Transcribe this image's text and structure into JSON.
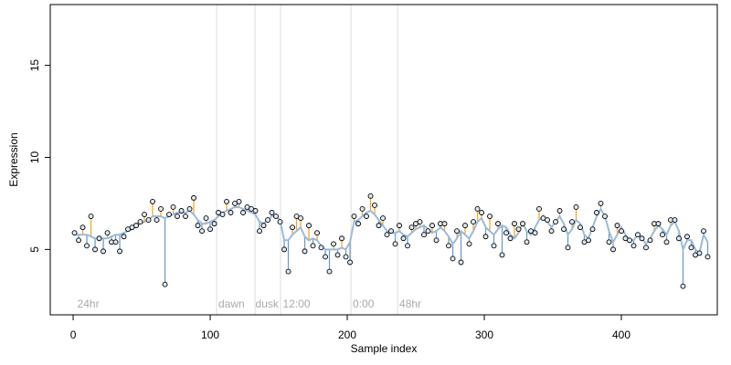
{
  "chart_data": {
    "type": "scatter",
    "xlabel": "Sample index",
    "ylabel": "Expression",
    "xlim": [
      -16.7,
      470
    ],
    "ylim": [
      1.45,
      18.3
    ],
    "xticks": [
      0,
      100,
      200,
      300,
      400
    ],
    "yticks": [
      5,
      10,
      15
    ],
    "point_color": "#dce8f2",
    "fit_color": "#9cbad8",
    "above_color": "#f5a623",
    "below_color": "#6f9cc4",
    "vline_color": "#dddddd",
    "vlines": [
      104.7,
      132.7,
      151.3,
      202.7,
      236.7
    ],
    "annotations": [
      {
        "text": "24hr",
        "x": 3,
        "y": 2.0
      },
      {
        "text": "dawn",
        "x": 106,
        "y": 2.0
      },
      {
        "text": "dusk",
        "x": 133,
        "y": 2.0
      },
      {
        "text": "12:00",
        "x": 153,
        "y": 2.0
      },
      {
        "text": "0:00",
        "x": 204,
        "y": 2.0
      },
      {
        "text": "48hr",
        "x": 238,
        "y": 2.0
      }
    ],
    "x": [
      1,
      4,
      7,
      10,
      13,
      16,
      19,
      22,
      25,
      28,
      31,
      34,
      37,
      40,
      43,
      46,
      49,
      52,
      55,
      58,
      61,
      64,
      67,
      70,
      73,
      76,
      79,
      82,
      85,
      88,
      91,
      94,
      97,
      100,
      103,
      106,
      109,
      112,
      115,
      118,
      121,
      124,
      127,
      130,
      133,
      136,
      139,
      142,
      145,
      148,
      151,
      154,
      157,
      160,
      163,
      166,
      169,
      172,
      175,
      178,
      181,
      184,
      187,
      190,
      193,
      196,
      199,
      202,
      205,
      208,
      211,
      214,
      217,
      220,
      223,
      226,
      229,
      232,
      235,
      238,
      241,
      244,
      247,
      250,
      253,
      256,
      259,
      262,
      265,
      268,
      271,
      274,
      277,
      280,
      283,
      286,
      289,
      292,
      295,
      298,
      301,
      304,
      307,
      310,
      313,
      316,
      319,
      322,
      325,
      328,
      331,
      334,
      337,
      340,
      343,
      346,
      349,
      352,
      355,
      358,
      361,
      364,
      367,
      370,
      373,
      376,
      379,
      382,
      385,
      388,
      391,
      394,
      397,
      400,
      403,
      406,
      409,
      412,
      415,
      418,
      421,
      424,
      427,
      430,
      433,
      436,
      439,
      442,
      445,
      448,
      451,
      454,
      457,
      460,
      463
    ],
    "values": [
      5.9,
      5.5,
      6.2,
      5.2,
      6.8,
      5.0,
      5.6,
      4.9,
      5.9,
      5.4,
      5.4,
      4.9,
      5.7,
      6.1,
      6.2,
      6.3,
      6.5,
      6.9,
      6.6,
      7.6,
      6.6,
      7.2,
      3.1,
      6.9,
      7.3,
      6.8,
      7.1,
      6.8,
      7.2,
      7.8,
      6.3,
      6.0,
      6.7,
      6.1,
      6.4,
      7.0,
      6.9,
      7.6,
      7.0,
      7.5,
      7.6,
      7.0,
      7.3,
      7.2,
      7.1,
      6.0,
      6.3,
      6.6,
      7.0,
      6.8,
      6.5,
      5.0,
      3.8,
      6.2,
      6.8,
      6.7,
      4.9,
      6.3,
      5.2,
      5.9,
      5.1,
      4.6,
      3.8,
      5.3,
      4.7,
      5.6,
      4.6,
      4.3,
      6.8,
      6.4,
      7.2,
      6.8,
      7.9,
      7.4,
      6.3,
      6.7,
      5.8,
      6.0,
      5.3,
      6.3,
      5.6,
      5.2,
      6.2,
      6.4,
      6.5,
      5.8,
      6.0,
      6.3,
      5.5,
      6.4,
      6.4,
      5.2,
      4.5,
      6.0,
      4.3,
      6.3,
      5.3,
      6.5,
      7.2,
      7.0,
      5.7,
      6.8,
      5.2,
      6.4,
      4.7,
      5.9,
      5.6,
      6.4,
      6.1,
      6.4,
      5.4,
      6.0,
      5.9,
      7.2,
      6.7,
      6.6,
      6.0,
      6.5,
      7.1,
      6.1,
      5.1,
      6.5,
      7.3,
      6.2,
      5.4,
      5.5,
      6.1,
      7.0,
      7.5,
      6.8,
      5.4,
      5.0,
      6.3,
      6.0,
      5.6,
      5.5,
      5.2,
      5.8,
      5.6,
      5.1,
      5.5,
      6.4,
      6.4,
      5.8,
      5.4,
      6.6,
      6.6,
      5.6,
      3.0,
      5.7,
      5.1,
      4.7,
      4.8,
      6.0,
      4.6
    ],
    "fit_values": [
      5.8,
      5.8,
      5.8,
      5.8,
      5.7,
      5.6,
      5.6,
      5.6,
      5.6,
      5.7,
      5.8,
      5.8,
      5.9,
      6.0,
      6.1,
      6.3,
      6.4,
      6.5,
      6.6,
      6.8,
      6.8,
      6.8,
      6.7,
      6.8,
      6.9,
      7.0,
      7.0,
      7.0,
      7.1,
      6.9,
      6.6,
      6.4,
      6.4,
      6.5,
      6.6,
      6.8,
      7.0,
      7.1,
      7.2,
      7.3,
      7.3,
      7.2,
      7.1,
      7.0,
      6.9,
      6.5,
      6.4,
      6.6,
      6.8,
      6.8,
      6.6,
      5.5,
      5.5,
      5.8,
      6.0,
      6.2,
      5.7,
      5.5,
      5.6,
      5.5,
      5.2,
      5.0,
      5.0,
      5.0,
      5.0,
      5.1,
      5.0,
      5.4,
      6.5,
      6.6,
      6.8,
      7.0,
      7.1,
      6.9,
      6.6,
      6.3,
      6.0,
      5.9,
      5.9,
      6.0,
      5.8,
      5.7,
      5.9,
      6.1,
      6.2,
      6.3,
      6.1,
      5.9,
      6.0,
      6.2,
      6.0,
      5.7,
      5.3,
      5.6,
      6.0,
      5.8,
      5.6,
      6.0,
      6.5,
      6.7,
      6.2,
      6.0,
      5.8,
      6.1,
      6.3,
      6.2,
      5.8,
      5.6,
      5.9,
      6.4,
      6.0,
      5.8,
      6.2,
      6.6,
      6.8,
      6.5,
      6.2,
      6.5,
      6.8,
      6.4,
      5.8,
      6.1,
      6.6,
      6.4,
      5.8,
      5.6,
      6.2,
      6.8,
      7.2,
      6.8,
      6.0,
      5.4,
      5.8,
      6.2,
      5.8,
      5.5,
      5.5,
      5.8,
      5.6,
      5.3,
      5.6,
      6.0,
      6.3,
      6.1,
      5.8,
      6.3,
      6.5,
      6.0,
      5.0,
      5.5,
      5.5,
      5.0,
      4.8,
      5.8,
      5.4
    ]
  }
}
